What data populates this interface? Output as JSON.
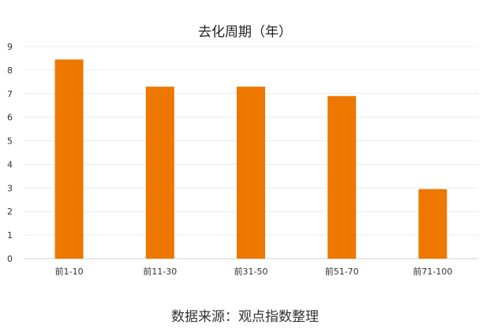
{
  "chart_data": {
    "type": "bar",
    "title": "去化周期（年）",
    "categories": [
      "前1-10",
      "前11-30",
      "前31-50",
      "前51-70",
      "前71-100"
    ],
    "values": [
      8.45,
      7.3,
      7.3,
      6.9,
      2.95
    ],
    "ylim": [
      0,
      9
    ],
    "yticks": [
      0,
      1,
      2,
      3,
      4,
      5,
      6,
      7,
      8,
      9
    ],
    "grid": true,
    "bar_color": "#EE7700"
  },
  "source_text": "数据来源：观点指数整理"
}
